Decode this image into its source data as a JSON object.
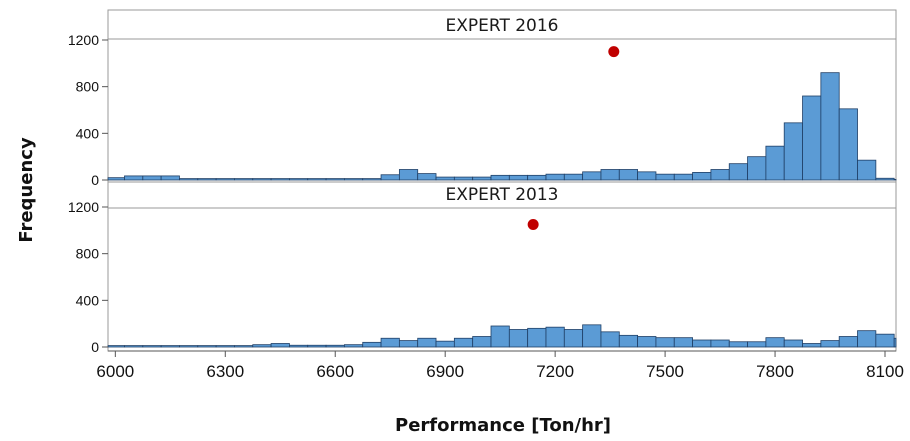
{
  "chart_data": {
    "type": "bar",
    "subtype": "histogram-panel",
    "xlabel": "Performance [Ton/hr]",
    "ylabel": "Frequency",
    "xlim": [
      5980,
      8130
    ],
    "xticks": [
      6000,
      6300,
      6600,
      6900,
      7200,
      7500,
      7800,
      8100
    ],
    "ylim": [
      0,
      1300
    ],
    "yticks": [
      0,
      400,
      800,
      1200
    ],
    "bin_start": 5975,
    "bin_width": 50,
    "bar_color": "#5b9bd5",
    "bar_edge_color": "#1f3f66",
    "marker_color": "#c00000",
    "grid": false,
    "legend": "none",
    "panels": [
      {
        "name": "EXPERT 2016",
        "values": [
          20,
          35,
          35,
          35,
          12,
          12,
          12,
          12,
          12,
          12,
          12,
          12,
          12,
          12,
          12,
          45,
          90,
          55,
          25,
          25,
          25,
          40,
          40,
          40,
          50,
          50,
          70,
          90,
          90,
          70,
          50,
          50,
          65,
          90,
          140,
          200,
          290,
          490,
          720,
          920,
          610,
          170,
          15,
          5,
          5,
          5,
          5,
          5,
          5
        ],
        "marker": {
          "x": 7360,
          "y": 1100
        }
      },
      {
        "name": "EXPERT 2013",
        "values": [
          12,
          12,
          12,
          12,
          12,
          12,
          12,
          12,
          20,
          30,
          15,
          15,
          15,
          20,
          40,
          75,
          55,
          75,
          50,
          75,
          90,
          180,
          150,
          160,
          170,
          150,
          190,
          130,
          100,
          90,
          80,
          80,
          60,
          60,
          45,
          45,
          80,
          60,
          30,
          55,
          90,
          140,
          110,
          75,
          105,
          50,
          15,
          5,
          5
        ],
        "marker": {
          "x": 7140,
          "y": 1050
        }
      }
    ]
  }
}
